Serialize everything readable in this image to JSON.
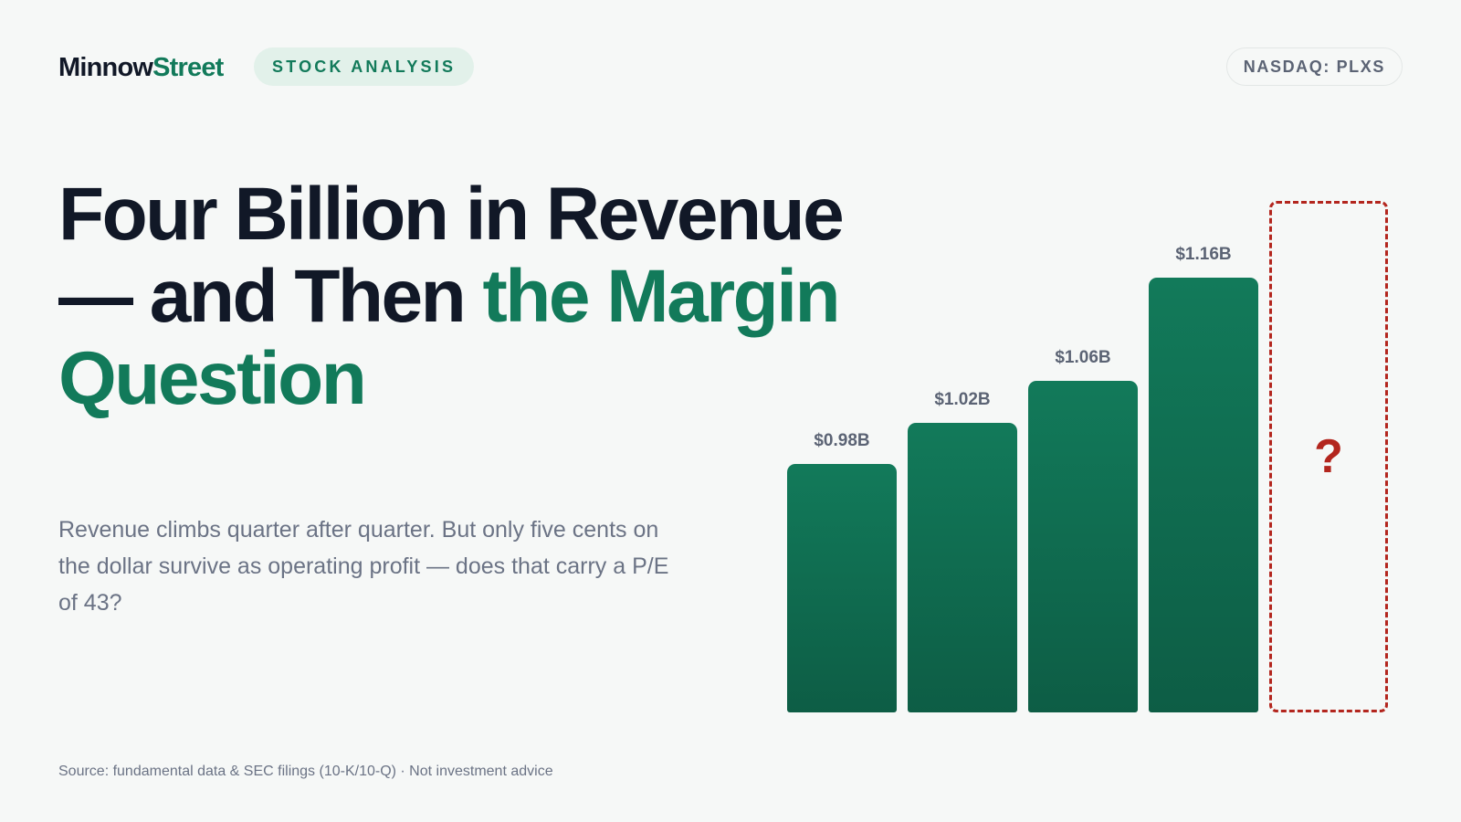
{
  "brand": {
    "name_part1": "Minnow",
    "name_part2": "Street",
    "primary_color": "#111827",
    "accent_color": "#127a5a"
  },
  "header": {
    "category_badge": "STOCK ANALYSIS",
    "ticker_badge": "NASDAQ: PLXS"
  },
  "headline": {
    "part1": "Four Billion in Revenue — and Then ",
    "part2_highlight": "the Margin Question"
  },
  "subtitle": "Revenue climbs quarter after quarter. But only five cents on the dollar survive as operating profit — does that carry a P/E of 43?",
  "footer": {
    "source": "Source: fundamental data & SEC filings (10-K/10-Q) · Not investment advice"
  },
  "chart_data": {
    "type": "bar",
    "title": "",
    "xlabel": "",
    "ylabel": "",
    "categories": [
      "",
      "",
      "",
      ""
    ],
    "values": [
      0.98,
      1.02,
      1.06,
      1.16
    ],
    "data_labels": [
      "$0.98B",
      "$1.02B",
      "$1.06B",
      "$1.16B"
    ],
    "unit": "$B",
    "baseline": 0.74,
    "placeholder": {
      "label": "?",
      "color": "#b3261e",
      "style": "dashed-outline"
    },
    "bar_color_top": "#127a5a",
    "bar_color_bottom": "#0d5d45",
    "grid": false,
    "legend": "none"
  }
}
